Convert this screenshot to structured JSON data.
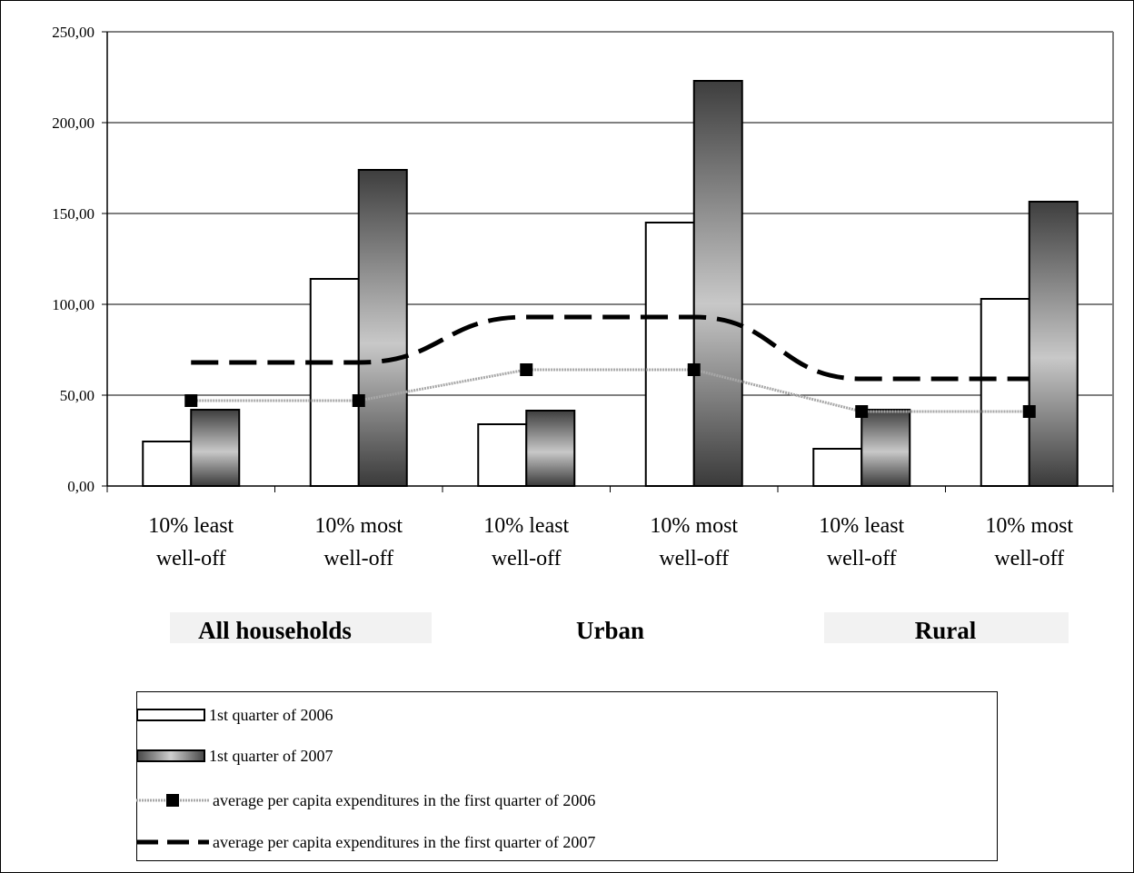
{
  "chart_data": {
    "type": "bar",
    "title": "",
    "xlabel": "",
    "ylabel": "",
    "ylim": [
      0,
      250
    ],
    "y_ticks": [
      "0,00",
      "50,00",
      "100,00",
      "150,00",
      "200,00",
      "250,00"
    ],
    "y_tick_values": [
      0,
      50,
      100,
      150,
      200,
      250
    ],
    "grid": true,
    "categories": [
      "10% least well-off",
      "10% most well-off",
      "10% least well-off",
      "10% most well-off",
      "10% least well-off",
      "10% most well-off"
    ],
    "category_lines": [
      [
        "10% least",
        "well-off"
      ],
      [
        "10% most",
        "well-off"
      ],
      [
        "10% least",
        "well-off"
      ],
      [
        "10% most",
        "well-off"
      ],
      [
        "10% least",
        "well-off"
      ],
      [
        "10% most",
        "well-off"
      ]
    ],
    "groups": [
      "All households",
      "Urban",
      "Rural"
    ],
    "series": [
      {
        "name": "1st quarter of 2006",
        "kind": "bar",
        "fill": "white",
        "values": [
          24.5,
          114,
          34,
          145,
          20.5,
          103
        ]
      },
      {
        "name": "1st quarter of 2007",
        "kind": "bar",
        "fill": "gradient",
        "values": [
          42,
          174,
          41.5,
          223,
          42,
          156.5
        ]
      },
      {
        "name": "average per capita expenditures in the first quarter of 2006",
        "kind": "line-marker",
        "values": [
          47,
          47,
          64,
          64,
          41,
          41
        ]
      },
      {
        "name": "average per capita expenditures in the first quarter of 2007",
        "kind": "dashed-line",
        "values": [
          68,
          68,
          93,
          93,
          59,
          59
        ]
      }
    ],
    "legend_position": "bottom",
    "colors": {
      "gradient_dark": "#4a4a4a",
      "gradient_light": "#cfcfcf",
      "line_2006": "#a8a8a8",
      "line_2007": "#000000",
      "group_label_bg": "#f2f2f2",
      "grid": "#000000"
    }
  }
}
